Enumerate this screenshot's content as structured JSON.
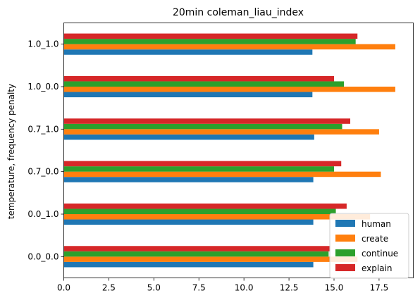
{
  "chart_data": {
    "type": "bar",
    "orientation": "horizontal",
    "title": "20min coleman_liau_index",
    "xlabel": "",
    "ylabel": "temperature, frequency penalty",
    "categories": [
      "0.0_0.0",
      "0.0_1.0",
      "0.7_0.0",
      "0.7_1.0",
      "1.0_0.0",
      "1.0_1.0"
    ],
    "xlim": [
      0,
      19.4
    ],
    "xticks": [
      0.0,
      2.5,
      5.0,
      7.5,
      10.0,
      12.5,
      15.0,
      17.5
    ],
    "xtick_labels": [
      "0.0",
      "2.5",
      "5.0",
      "7.5",
      "10.0",
      "12.5",
      "15.0",
      "17.5"
    ],
    "grid": false,
    "legend_position": "lower-right",
    "series": [
      {
        "name": "human",
        "color": "#1f77b4",
        "values": [
          13.85,
          13.85,
          13.85,
          13.9,
          13.8,
          13.8
        ]
      },
      {
        "name": "create",
        "color": "#ff7f0e",
        "values": [
          16.3,
          17.0,
          17.6,
          17.5,
          18.4,
          18.4
        ]
      },
      {
        "name": "continue",
        "color": "#2ca02c",
        "values": [
          14.7,
          15.1,
          15.0,
          15.45,
          15.55,
          16.2
        ]
      },
      {
        "name": "explain",
        "color": "#d62728",
        "values": [
          14.8,
          15.7,
          15.4,
          15.9,
          15.0,
          16.3
        ]
      }
    ]
  }
}
